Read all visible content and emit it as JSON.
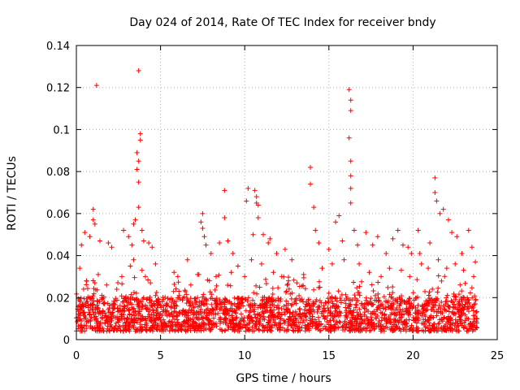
{
  "chart_data": {
    "type": "scatter",
    "title": "Day 024 of 2014, Rate Of TEC Index for receiver bndy",
    "xlabel": "GPS time / hours",
    "ylabel": "ROTI / TECUs",
    "xlim": [
      0,
      25
    ],
    "ylim": [
      0,
      0.14
    ],
    "x_ticks": [
      0,
      5,
      10,
      15,
      20,
      25
    ],
    "x_tick_labels": [
      "0",
      "5",
      "10",
      "15",
      "20",
      "25"
    ],
    "y_ticks": [
      0,
      0.02,
      0.04,
      0.06,
      0.08,
      0.1,
      0.12,
      0.14
    ],
    "y_tick_labels": [
      "0",
      "0.02",
      "0.04",
      "0.06",
      "0.08",
      "0.1",
      "0.12",
      "0.14"
    ],
    "grid": true,
    "marker": "+",
    "color": "#ff0000",
    "background_band": {
      "x_range": [
        0,
        23.8
      ],
      "y_range": [
        0.004,
        0.02
      ],
      "description": "dense cloud of points"
    },
    "series": [
      {
        "name": "ROTI",
        "points": [
          [
            1.2,
            0.121
          ],
          [
            3.7,
            0.128
          ],
          [
            3.8,
            0.098
          ],
          [
            3.8,
            0.095
          ],
          [
            3.6,
            0.089
          ],
          [
            3.7,
            0.085
          ],
          [
            3.6,
            0.081
          ],
          [
            3.7,
            0.075
          ],
          [
            3.7,
            0.063
          ],
          [
            3.5,
            0.057
          ],
          [
            3.4,
            0.055
          ],
          [
            3.9,
            0.052
          ],
          [
            4.0,
            0.047
          ],
          [
            4.3,
            0.046
          ],
          [
            4.5,
            0.044
          ],
          [
            0.3,
            0.045
          ],
          [
            0.5,
            0.051
          ],
          [
            0.8,
            0.049
          ],
          [
            1.0,
            0.062
          ],
          [
            1.0,
            0.057
          ],
          [
            1.1,
            0.055
          ],
          [
            1.4,
            0.047
          ],
          [
            1.9,
            0.046
          ],
          [
            2.1,
            0.044
          ],
          [
            2.8,
            0.052
          ],
          [
            3.1,
            0.049
          ],
          [
            3.3,
            0.045
          ],
          [
            3.4,
            0.038
          ],
          [
            4.7,
            0.036
          ],
          [
            5.8,
            0.032
          ],
          [
            6.6,
            0.038
          ],
          [
            7.4,
            0.056
          ],
          [
            7.5,
            0.06
          ],
          [
            7.5,
            0.053
          ],
          [
            7.6,
            0.049
          ],
          [
            7.7,
            0.045
          ],
          [
            8.0,
            0.041
          ],
          [
            8.5,
            0.046
          ],
          [
            8.8,
            0.071
          ],
          [
            8.8,
            0.058
          ],
          [
            9.0,
            0.047
          ],
          [
            9.3,
            0.041
          ],
          [
            10.2,
            0.072
          ],
          [
            10.1,
            0.066
          ],
          [
            10.6,
            0.071
          ],
          [
            10.7,
            0.068
          ],
          [
            10.7,
            0.065
          ],
          [
            10.8,
            0.064
          ],
          [
            10.8,
            0.058
          ],
          [
            10.5,
            0.05
          ],
          [
            11.1,
            0.05
          ],
          [
            11.4,
            0.046
          ],
          [
            11.5,
            0.048
          ],
          [
            11.9,
            0.041
          ],
          [
            12.4,
            0.043
          ],
          [
            12.8,
            0.038
          ],
          [
            13.9,
            0.082
          ],
          [
            13.9,
            0.074
          ],
          [
            14.1,
            0.063
          ],
          [
            14.2,
            0.052
          ],
          [
            14.4,
            0.046
          ],
          [
            15.0,
            0.043
          ],
          [
            15.4,
            0.056
          ],
          [
            15.6,
            0.059
          ],
          [
            15.8,
            0.047
          ],
          [
            16.2,
            0.119
          ],
          [
            16.3,
            0.114
          ],
          [
            16.3,
            0.109
          ],
          [
            16.2,
            0.096
          ],
          [
            16.3,
            0.085
          ],
          [
            16.3,
            0.078
          ],
          [
            16.3,
            0.072
          ],
          [
            16.3,
            0.065
          ],
          [
            16.5,
            0.052
          ],
          [
            16.7,
            0.045
          ],
          [
            17.2,
            0.051
          ],
          [
            17.6,
            0.045
          ],
          [
            17.9,
            0.049
          ],
          [
            18.4,
            0.041
          ],
          [
            18.8,
            0.048
          ],
          [
            19.1,
            0.052
          ],
          [
            19.4,
            0.045
          ],
          [
            19.7,
            0.044
          ],
          [
            19.9,
            0.041
          ],
          [
            20.3,
            0.052
          ],
          [
            20.4,
            0.041
          ],
          [
            21.0,
            0.046
          ],
          [
            21.3,
            0.077
          ],
          [
            21.3,
            0.07
          ],
          [
            21.4,
            0.066
          ],
          [
            21.6,
            0.06
          ],
          [
            21.8,
            0.062
          ],
          [
            22.1,
            0.057
          ],
          [
            22.3,
            0.051
          ],
          [
            22.6,
            0.049
          ],
          [
            22.9,
            0.041
          ],
          [
            23.3,
            0.052
          ],
          [
            23.5,
            0.044
          ],
          [
            23.7,
            0.037
          ],
          [
            0.2,
            0.034
          ],
          [
            0.6,
            0.028
          ],
          [
            1.3,
            0.031
          ],
          [
            1.8,
            0.026
          ],
          [
            2.4,
            0.024
          ],
          [
            2.7,
            0.03
          ],
          [
            3.2,
            0.035
          ],
          [
            3.9,
            0.033
          ],
          [
            4.1,
            0.03
          ],
          [
            4.4,
            0.027
          ],
          [
            4.9,
            0.018
          ],
          [
            5.4,
            0.016
          ],
          [
            6.1,
            0.021
          ],
          [
            6.8,
            0.026
          ],
          [
            7.2,
            0.031
          ],
          [
            7.9,
            0.028
          ],
          [
            8.3,
            0.03
          ],
          [
            9.2,
            0.032
          ],
          [
            9.6,
            0.035
          ],
          [
            10.0,
            0.03
          ],
          [
            10.4,
            0.038
          ],
          [
            11.0,
            0.036
          ],
          [
            11.7,
            0.032
          ],
          [
            12.2,
            0.03
          ],
          [
            12.6,
            0.028
          ],
          [
            13.1,
            0.027
          ],
          [
            13.5,
            0.031
          ],
          [
            14.6,
            0.034
          ],
          [
            15.2,
            0.036
          ],
          [
            15.9,
            0.038
          ],
          [
            16.8,
            0.036
          ],
          [
            17.4,
            0.032
          ],
          [
            18.1,
            0.03
          ],
          [
            18.6,
            0.034
          ],
          [
            19.3,
            0.033
          ],
          [
            19.8,
            0.03
          ],
          [
            20.5,
            0.036
          ],
          [
            20.9,
            0.034
          ],
          [
            21.5,
            0.038
          ],
          [
            22.0,
            0.034
          ],
          [
            22.5,
            0.036
          ],
          [
            23.0,
            0.033
          ],
          [
            23.6,
            0.03
          ]
        ]
      }
    ]
  }
}
